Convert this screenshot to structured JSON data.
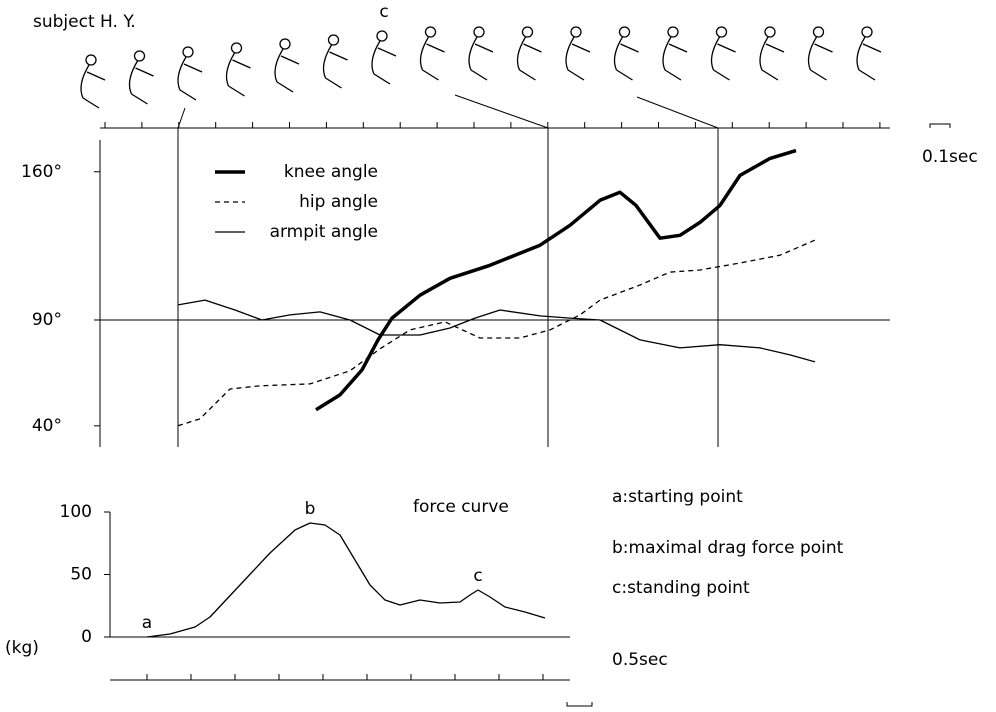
{
  "figure": {
    "subject": "subject H. Y.",
    "pose_label": "c",
    "upper_scale": "0.1sec",
    "lower_scale": "0.5sec"
  },
  "notes": [
    "a:starting point",
    "b:maximal drag force point",
    "c:standing point"
  ],
  "chart_data": [
    {
      "type": "line",
      "xlim": [
        0,
        4
      ],
      "ylim": [
        30,
        175
      ],
      "yticks": [
        {
          "value": 40,
          "label": "40°"
        },
        {
          "value": 90,
          "label": "90°"
        },
        {
          "value": 160,
          "label": "160°"
        }
      ],
      "reference_y": 90,
      "reference_x": [
        0.39,
        2.24,
        3.09
      ],
      "series": [
        {
          "name": "knee angle",
          "color": "#000000",
          "width": 3.5,
          "dashed": false,
          "x": [
            1.08,
            1.2,
            1.31,
            1.39,
            1.46,
            1.6,
            1.75,
            1.95,
            2.2,
            2.35,
            2.5,
            2.6,
            2.68,
            2.8,
            2.9,
            3.0,
            3.1,
            3.2,
            3.35,
            3.48
          ],
          "values": [
            47.6,
            54.6,
            66.4,
            80.6,
            90.9,
            101.7,
            109.7,
            115.8,
            125.3,
            134.7,
            146.5,
            150.3,
            144.1,
            128.6,
            130.0,
            136.1,
            144.1,
            158.3,
            166.3,
            170.0
          ]
        },
        {
          "name": "hip angle",
          "color": "#000000",
          "width": 1.3,
          "dashed": true,
          "x": [
            0.39,
            0.5,
            0.65,
            0.8,
            1.05,
            1.25,
            1.4,
            1.55,
            1.725,
            1.9,
            2.1,
            2.25,
            2.4,
            2.5,
            2.7,
            2.85,
            3.0,
            3.2,
            3.4,
            3.575
          ],
          "values": [
            40,
            43.3,
            57.4,
            58.9,
            59.8,
            66.0,
            76.4,
            85.3,
            89.1,
            81.5,
            81.5,
            85.3,
            92.4,
            99.4,
            106.5,
            112.6,
            113.6,
            116.9,
            120.6,
            127.7
          ]
        },
        {
          "name": "armpit angle",
          "color": "#000000",
          "width": 1.3,
          "dashed": false,
          "x": [
            0.39,
            0.525,
            0.675,
            0.81,
            0.95,
            1.1,
            1.25,
            1.4,
            1.6,
            1.75,
            1.875,
            2.0,
            2.2,
            2.35,
            2.5,
            2.7,
            2.9,
            3.1,
            3.3,
            3.45,
            3.575
          ],
          "values": [
            97.1,
            99.4,
            94.7,
            90,
            92.4,
            93.8,
            90,
            82.9,
            82.9,
            86.2,
            90.9,
            94.7,
            91.9,
            90.9,
            90,
            80.6,
            76.8,
            78.3,
            76.8,
            73.5,
            70.2
          ]
        }
      ]
    },
    {
      "type": "line",
      "title": "force curve",
      "ylabel": "(kg)",
      "xlim": [
        0,
        9.2
      ],
      "ylim": [
        0,
        100
      ],
      "yticks": [
        0,
        50,
        100
      ],
      "series": [
        {
          "name": "force",
          "color": "#000000",
          "width": 1.3,
          "dashed": false,
          "x": [
            0.74,
            1.2,
            1.7,
            2.0,
            2.6,
            3.2,
            3.7,
            4.0,
            4.3,
            4.6,
            4.9,
            5.2,
            5.5,
            5.8,
            6.2,
            6.6,
            7.0,
            7.2,
            7.36,
            7.6,
            7.9,
            8.3,
            8.7
          ],
          "values": [
            0,
            2.4,
            8,
            16,
            41.6,
            67.2,
            85.6,
            91.2,
            89.6,
            81.6,
            61.6,
            41.6,
            29.6,
            25.6,
            29.6,
            27.2,
            28,
            33.6,
            37.6,
            32,
            24,
            20,
            15.2
          ]
        }
      ],
      "annotations": [
        {
          "text": "a",
          "x": 0.74,
          "y": 0
        },
        {
          "text": "b",
          "x": 4.0,
          "y": 91.2
        },
        {
          "text": "c",
          "x": 7.36,
          "y": 37.6
        }
      ]
    }
  ]
}
